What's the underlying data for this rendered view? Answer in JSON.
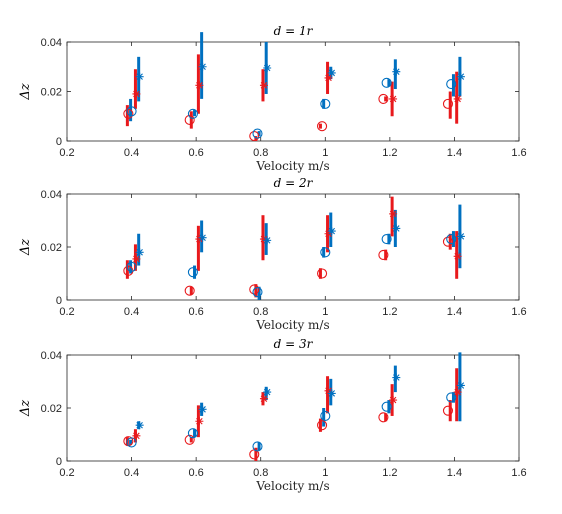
{
  "colors": {
    "red": "#e8191c",
    "blue": "#0070c0",
    "axis": "#262626"
  },
  "chart_data": [
    {
      "type": "scatter",
      "title": "d = 1r",
      "xlabel": "Velocity m/s",
      "ylabel": "Δz",
      "xlim": [
        0.2,
        1.6
      ],
      "ylim": [
        0,
        0.04
      ],
      "xticks": [
        "0.2",
        "0.4",
        "0.6",
        "0.8",
        "1",
        "1.2",
        "1.4",
        "1.6"
      ],
      "yticks": [
        "0",
        "0.02",
        "0.04"
      ],
      "series": [
        {
          "marker": "circle",
          "color": "red",
          "x": [
            0.39,
            0.58,
            0.78,
            0.99,
            1.18,
            1.38
          ],
          "y": [
            0.011,
            0.0085,
            0.002,
            0.006,
            0.017,
            0.015
          ]
        },
        {
          "marker": "circle",
          "color": "blue",
          "x": [
            0.4,
            0.59,
            0.79,
            1.0,
            1.19,
            1.39
          ],
          "y": [
            0.012,
            0.011,
            0.003,
            0.015,
            0.0235,
            0.023
          ]
        },
        {
          "marker": "star",
          "color": "red",
          "x": [
            0.415,
            0.61,
            0.81,
            1.01,
            1.21,
            1.41
          ],
          "y": [
            0.019,
            0.0225,
            0.0225,
            0.0255,
            0.017,
            0.017
          ]
        },
        {
          "marker": "star",
          "color": "blue",
          "x": [
            0.425,
            0.62,
            0.82,
            1.02,
            1.22,
            1.42
          ],
          "y": [
            0.026,
            0.03,
            0.0295,
            0.0275,
            0.028,
            0.026
          ]
        }
      ],
      "error_bars": [
        {
          "color": "red",
          "x": [
            0.387,
            0.585,
            0.785,
            0.985,
            1.187,
            1.387
          ],
          "low": [
            0.006,
            0.005,
            0.0,
            0.005,
            0.016,
            0.009
          ],
          "high": [
            0.0145,
            0.012,
            0.002,
            0.007,
            0.018,
            0.02
          ]
        },
        {
          "color": "blue",
          "x": [
            0.397,
            0.595,
            0.795,
            0.995,
            1.197,
            1.397
          ],
          "low": [
            0.008,
            0.01,
            0.002,
            0.013,
            0.022,
            0.018
          ],
          "high": [
            0.017,
            0.0125,
            0.004,
            0.017,
            0.025,
            0.027
          ]
        },
        {
          "color": "red",
          "x": [
            0.412,
            0.607,
            0.807,
            1.007,
            1.207,
            1.407
          ],
          "low": [
            0.013,
            0.011,
            0.016,
            0.019,
            0.01,
            0.007
          ],
          "high": [
            0.029,
            0.035,
            0.029,
            0.032,
            0.024,
            0.028
          ]
        },
        {
          "color": "blue",
          "x": [
            0.422,
            0.617,
            0.817,
            1.017,
            1.217,
            1.417
          ],
          "low": [
            0.016,
            0.017,
            0.019,
            0.025,
            0.021,
            0.018
          ],
          "high": [
            0.034,
            0.044,
            0.04,
            0.03,
            0.033,
            0.034
          ]
        }
      ]
    },
    {
      "type": "scatter",
      "title": "d = 2r",
      "xlabel": "Velocity m/s",
      "ylabel": "Δz",
      "xlim": [
        0.2,
        1.6
      ],
      "ylim": [
        0,
        0.04
      ],
      "xticks": [
        "0.2",
        "0.4",
        "0.6",
        "0.8",
        "1",
        "1.2",
        "1.4",
        "1.6"
      ],
      "yticks": [
        "0",
        "0.02",
        "0.04"
      ],
      "series": [
        {
          "marker": "circle",
          "color": "red",
          "x": [
            0.39,
            0.58,
            0.78,
            0.99,
            1.18,
            1.38
          ],
          "y": [
            0.011,
            0.0035,
            0.004,
            0.01,
            0.017,
            0.022
          ]
        },
        {
          "marker": "circle",
          "color": "blue",
          "x": [
            0.4,
            0.59,
            0.79,
            1.0,
            1.19,
            1.39
          ],
          "y": [
            0.0125,
            0.0105,
            0.003,
            0.018,
            0.023,
            0.023
          ]
        },
        {
          "marker": "star",
          "color": "red",
          "x": [
            0.415,
            0.61,
            0.81,
            1.01,
            1.21,
            1.41
          ],
          "y": [
            0.0155,
            0.023,
            0.023,
            0.025,
            0.0325,
            0.0165
          ]
        },
        {
          "marker": "star",
          "color": "blue",
          "x": [
            0.425,
            0.62,
            0.82,
            1.02,
            1.22,
            1.42
          ],
          "y": [
            0.018,
            0.0235,
            0.0225,
            0.026,
            0.027,
            0.024
          ]
        }
      ],
      "error_bars": [
        {
          "color": "red",
          "x": [
            0.387,
            0.585,
            0.785,
            0.985,
            1.187,
            1.387
          ],
          "low": [
            0.008,
            0.002,
            0.001,
            0.008,
            0.015,
            0.019
          ],
          "high": [
            0.015,
            0.005,
            0.006,
            0.012,
            0.019,
            0.025
          ]
        },
        {
          "color": "blue",
          "x": [
            0.397,
            0.595,
            0.795,
            0.995,
            1.197,
            1.397
          ],
          "low": [
            0.01,
            0.008,
            0.0,
            0.016,
            0.021,
            0.02
          ],
          "high": [
            0.015,
            0.013,
            0.005,
            0.02,
            0.025,
            0.026
          ]
        },
        {
          "color": "red",
          "x": [
            0.412,
            0.607,
            0.807,
            1.007,
            1.207,
            1.407
          ],
          "low": [
            0.011,
            0.011,
            0.015,
            0.018,
            0.024,
            0.008
          ],
          "high": [
            0.021,
            0.028,
            0.032,
            0.032,
            0.039,
            0.026
          ]
        },
        {
          "color": "blue",
          "x": [
            0.422,
            0.617,
            0.817,
            1.017,
            1.217,
            1.417
          ],
          "low": [
            0.013,
            0.018,
            0.017,
            0.02,
            0.02,
            0.012
          ],
          "high": [
            0.025,
            0.03,
            0.029,
            0.033,
            0.034,
            0.036
          ]
        }
      ]
    },
    {
      "type": "scatter",
      "title": "d = 3r",
      "xlabel": "Velocity m/s",
      "ylabel": "Δz",
      "xlim": [
        0.2,
        1.6
      ],
      "ylim": [
        0,
        0.04
      ],
      "xticks": [
        "0.2",
        "0.4",
        "0.6",
        "0.8",
        "1",
        "1.2",
        "1.4",
        "1.6"
      ],
      "yticks": [
        "0",
        "0.02",
        "0.04"
      ],
      "series": [
        {
          "marker": "circle",
          "color": "red",
          "x": [
            0.39,
            0.58,
            0.78,
            0.99,
            1.18,
            1.38
          ],
          "y": [
            0.0075,
            0.008,
            0.0025,
            0.0135,
            0.0165,
            0.019
          ]
        },
        {
          "marker": "circle",
          "color": "blue",
          "x": [
            0.4,
            0.59,
            0.79,
            1.0,
            1.19,
            1.39
          ],
          "y": [
            0.007,
            0.0105,
            0.0055,
            0.017,
            0.0205,
            0.024
          ]
        },
        {
          "marker": "star",
          "color": "red",
          "x": [
            0.415,
            0.61,
            0.81,
            1.01,
            1.21,
            1.41
          ],
          "y": [
            0.0095,
            0.015,
            0.0235,
            0.0265,
            0.023,
            0.026
          ]
        },
        {
          "marker": "star",
          "color": "blue",
          "x": [
            0.425,
            0.62,
            0.82,
            1.02,
            1.22,
            1.42
          ],
          "y": [
            0.0135,
            0.0195,
            0.026,
            0.0255,
            0.0315,
            0.0285
          ]
        }
      ],
      "error_bars": [
        {
          "color": "red",
          "x": [
            0.387,
            0.585,
            0.785,
            0.985,
            1.187,
            1.387
          ],
          "low": [
            0.006,
            0.007,
            0.0,
            0.011,
            0.015,
            0.015
          ],
          "high": [
            0.009,
            0.009,
            0.005,
            0.016,
            0.018,
            0.023
          ]
        },
        {
          "color": "blue",
          "x": [
            0.397,
            0.595,
            0.795,
            0.995,
            1.197,
            1.397
          ],
          "low": [
            0.006,
            0.009,
            0.004,
            0.013,
            0.018,
            0.022
          ],
          "high": [
            0.008,
            0.012,
            0.007,
            0.02,
            0.023,
            0.026
          ]
        },
        {
          "color": "red",
          "x": [
            0.412,
            0.607,
            0.807,
            1.007,
            1.207,
            1.407
          ],
          "low": [
            0.007,
            0.009,
            0.021,
            0.018,
            0.017,
            0.015
          ],
          "high": [
            0.012,
            0.021,
            0.026,
            0.032,
            0.029,
            0.035
          ]
        },
        {
          "color": "blue",
          "x": [
            0.422,
            0.617,
            0.817,
            1.017,
            1.217,
            1.417
          ],
          "low": [
            0.012,
            0.017,
            0.023,
            0.021,
            0.026,
            0.015
          ],
          "high": [
            0.015,
            0.022,
            0.028,
            0.031,
            0.036,
            0.041
          ]
        }
      ]
    }
  ]
}
